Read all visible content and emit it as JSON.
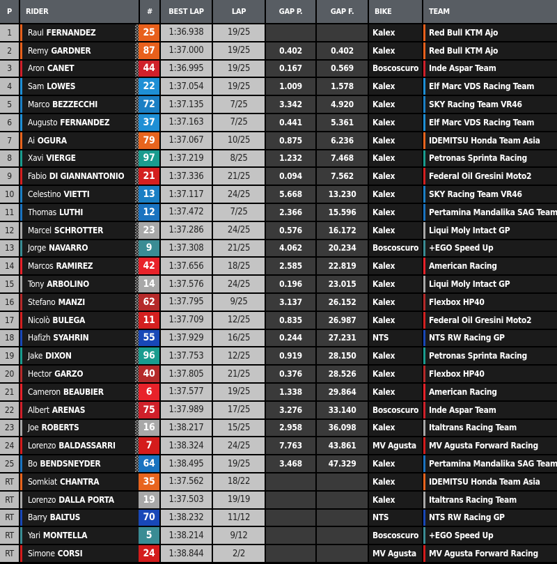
{
  "headers": [
    "P",
    "RIDER",
    "#",
    "BEST LAP",
    "LAP",
    "GAP P.",
    "GAP F.",
    "BIKE",
    "TEAM"
  ],
  "team_colors": {
    "Red Bull KTM Ajo": "#e8601c",
    "Inde Aspar Team": "#d0202a",
    "Elf Marc VDS Racing Team": "#1e8fd5",
    "SKY Racing Team VR46": "#1b7fc4",
    "IDEMITSU Honda Team Asia": "#e8641e",
    "Petronas Sprinta Racing": "#1a9c8f",
    "Federal Oil Gresini Moto2": "#d42020",
    "Pertamina Mandalika SAG Team": "#1a73c0",
    "Liqui Moly Intact GP": "#a8a8a8",
    "+EGO Speed Up": "#3a8c94",
    "American Racing": "#e8222a",
    "Flexbox HP40": "#b52a2a",
    "NTS RW Racing GP": "#1848b8",
    "Italtrans Racing Team": "#a8a8a8",
    "MV Agusta Forward Racing": "#d41c1c"
  },
  "rows": [
    {
      "pos": "1",
      "first": "Raul",
      "last": "FERNANDEZ",
      "num": "25",
      "best": "1:36.938",
      "lap": "19/25",
      "gap_p": "",
      "gap_f": "",
      "bike": "Kalex",
      "team": "Red Bull KTM Ajo",
      "finished": true
    },
    {
      "pos": "2",
      "first": "Remy",
      "last": "GARDNER",
      "num": "87",
      "best": "1:37.000",
      "lap": "19/25",
      "gap_p": "0.402",
      "gap_f": "0.402",
      "bike": "Kalex",
      "team": "Red Bull KTM Ajo",
      "finished": true
    },
    {
      "pos": "3",
      "first": "Aron",
      "last": "CANET",
      "num": "44",
      "best": "1:36.995",
      "lap": "19/25",
      "gap_p": "0.167",
      "gap_f": "0.569",
      "bike": "Boscoscuro",
      "team": "Inde Aspar Team",
      "finished": true
    },
    {
      "pos": "4",
      "first": "Sam",
      "last": "LOWES",
      "num": "22",
      "best": "1:37.054",
      "lap": "19/25",
      "gap_p": "1.009",
      "gap_f": "1.578",
      "bike": "Kalex",
      "team": "Elf Marc VDS Racing Team",
      "finished": true
    },
    {
      "pos": "5",
      "first": "Marco",
      "last": "BEZZECCHI",
      "num": "72",
      "best": "1:37.135",
      "lap": "7/25",
      "gap_p": "3.342",
      "gap_f": "4.920",
      "bike": "Kalex",
      "team": "SKY Racing Team VR46",
      "finished": true
    },
    {
      "pos": "6",
      "first": "Augusto",
      "last": "FERNANDEZ",
      "num": "37",
      "best": "1:37.163",
      "lap": "7/25",
      "gap_p": "0.441",
      "gap_f": "5.361",
      "bike": "Kalex",
      "team": "Elf Marc VDS Racing Team",
      "finished": true
    },
    {
      "pos": "7",
      "first": "Ai",
      "last": "OGURA",
      "num": "79",
      "best": "1:37.067",
      "lap": "10/25",
      "gap_p": "0.875",
      "gap_f": "6.236",
      "bike": "Kalex",
      "team": "IDEMITSU Honda Team Asia",
      "finished": true
    },
    {
      "pos": "8",
      "first": "Xavi",
      "last": "VIERGE",
      "num": "97",
      "best": "1:37.219",
      "lap": "8/25",
      "gap_p": "1.232",
      "gap_f": "7.468",
      "bike": "Kalex",
      "team": "Petronas Sprinta Racing",
      "finished": true
    },
    {
      "pos": "9",
      "first": "Fabio",
      "last": "DI GIANNANTONIO",
      "num": "21",
      "best": "1:37.336",
      "lap": "21/25",
      "gap_p": "0.094",
      "gap_f": "7.562",
      "bike": "Kalex",
      "team": "Federal Oil Gresini Moto2",
      "finished": true
    },
    {
      "pos": "10",
      "first": "Celestino",
      "last": "VIETTI",
      "num": "13",
      "best": "1:37.117",
      "lap": "24/25",
      "gap_p": "5.668",
      "gap_f": "13.230",
      "bike": "Kalex",
      "team": "SKY Racing Team VR46",
      "finished": true
    },
    {
      "pos": "11",
      "first": "Thomas",
      "last": "LUTHI",
      "num": "12",
      "best": "1:37.472",
      "lap": "7/25",
      "gap_p": "2.366",
      "gap_f": "15.596",
      "bike": "Kalex",
      "team": "Pertamina Mandalika SAG Team",
      "finished": true
    },
    {
      "pos": "12",
      "first": "Marcel",
      "last": "SCHROTTER",
      "num": "23",
      "best": "1:37.286",
      "lap": "24/25",
      "gap_p": "0.576",
      "gap_f": "16.172",
      "bike": "Kalex",
      "team": "Liqui Moly Intact GP",
      "finished": true
    },
    {
      "pos": "13",
      "first": "Jorge",
      "last": "NAVARRO",
      "num": "9",
      "best": "1:37.308",
      "lap": "21/25",
      "gap_p": "4.062",
      "gap_f": "20.234",
      "bike": "Boscoscuro",
      "team": "+EGO Speed Up",
      "finished": true
    },
    {
      "pos": "14",
      "first": "Marcos",
      "last": "RAMIREZ",
      "num": "42",
      "best": "1:37.656",
      "lap": "18/25",
      "gap_p": "2.585",
      "gap_f": "22.819",
      "bike": "Kalex",
      "team": "American Racing",
      "finished": true
    },
    {
      "pos": "15",
      "first": "Tony",
      "last": "ARBOLINO",
      "num": "14",
      "best": "1:37.576",
      "lap": "24/25",
      "gap_p": "0.196",
      "gap_f": "23.015",
      "bike": "Kalex",
      "team": "Liqui Moly Intact GP",
      "finished": true
    },
    {
      "pos": "16",
      "first": "Stefano",
      "last": "MANZI",
      "num": "62",
      "best": "1:37.795",
      "lap": "9/25",
      "gap_p": "3.137",
      "gap_f": "26.152",
      "bike": "Kalex",
      "team": "Flexbox HP40",
      "finished": true
    },
    {
      "pos": "17",
      "first": "Nicolò",
      "last": "BULEGA",
      "num": "11",
      "best": "1:37.709",
      "lap": "12/25",
      "gap_p": "0.835",
      "gap_f": "26.987",
      "bike": "Kalex",
      "team": "Federal Oil Gresini Moto2",
      "finished": true
    },
    {
      "pos": "18",
      "first": "Hafizh",
      "last": "SYAHRIN",
      "num": "55",
      "best": "1:37.929",
      "lap": "16/25",
      "gap_p": "0.244",
      "gap_f": "27.231",
      "bike": "NTS",
      "team": "NTS RW Racing GP",
      "finished": true
    },
    {
      "pos": "19",
      "first": "Jake",
      "last": "DIXON",
      "num": "96",
      "best": "1:37.753",
      "lap": "12/25",
      "gap_p": "0.919",
      "gap_f": "28.150",
      "bike": "Kalex",
      "team": "Petronas Sprinta Racing",
      "finished": true
    },
    {
      "pos": "20",
      "first": "Hector",
      "last": "GARZO",
      "num": "40",
      "best": "1:37.805",
      "lap": "21/25",
      "gap_p": "0.376",
      "gap_f": "28.526",
      "bike": "Kalex",
      "team": "Flexbox HP40",
      "finished": true
    },
    {
      "pos": "21",
      "first": "Cameron",
      "last": "BEAUBIER",
      "num": "6",
      "best": "1:37.577",
      "lap": "19/25",
      "gap_p": "1.338",
      "gap_f": "29.864",
      "bike": "Kalex",
      "team": "American Racing",
      "finished": true
    },
    {
      "pos": "22",
      "first": "Albert",
      "last": "ARENAS",
      "num": "75",
      "best": "1:37.989",
      "lap": "17/25",
      "gap_p": "3.276",
      "gap_f": "33.140",
      "bike": "Boscoscuro",
      "team": "Inde Aspar Team",
      "finished": true
    },
    {
      "pos": "23",
      "first": "Joe",
      "last": "ROBERTS",
      "num": "16",
      "best": "1:38.217",
      "lap": "15/25",
      "gap_p": "2.958",
      "gap_f": "36.098",
      "bike": "Kalex",
      "team": "Italtrans Racing Team",
      "finished": true
    },
    {
      "pos": "24",
      "first": "Lorenzo",
      "last": "BALDASSARRI",
      "num": "7",
      "best": "1:38.324",
      "lap": "24/25",
      "gap_p": "7.763",
      "gap_f": "43.861",
      "bike": "MV Agusta",
      "team": "MV Agusta Forward Racing",
      "finished": true
    },
    {
      "pos": "25",
      "first": "Bo",
      "last": "BENDSNEYDER",
      "num": "64",
      "best": "1:38.495",
      "lap": "19/25",
      "gap_p": "3.468",
      "gap_f": "47.329",
      "bike": "Kalex",
      "team": "Pertamina Mandalika SAG Team",
      "finished": true
    },
    {
      "pos": "RT",
      "first": "Somkiat",
      "last": "CHANTRA",
      "num": "35",
      "best": "1:37.562",
      "lap": "18/22",
      "gap_p": "",
      "gap_f": "",
      "bike": "Kalex",
      "team": "IDEMITSU Honda Team Asia",
      "finished": false
    },
    {
      "pos": "RT",
      "first": "Lorenzo",
      "last": "DALLA PORTA",
      "num": "19",
      "best": "1:37.503",
      "lap": "19/19",
      "gap_p": "",
      "gap_f": "",
      "bike": "Kalex",
      "team": "Italtrans Racing Team",
      "finished": false
    },
    {
      "pos": "RT",
      "first": "Barry",
      "last": "BALTUS",
      "num": "70",
      "best": "1:38.232",
      "lap": "11/12",
      "gap_p": "",
      "gap_f": "",
      "bike": "NTS",
      "team": "NTS RW Racing GP",
      "finished": false
    },
    {
      "pos": "RT",
      "first": "Yari",
      "last": "MONTELLA",
      "num": "5",
      "best": "1:38.214",
      "lap": "9/12",
      "gap_p": "",
      "gap_f": "",
      "bike": "Boscoscuro",
      "team": "+EGO Speed Up",
      "finished": false
    },
    {
      "pos": "RT",
      "first": "Simone",
      "last": "CORSI",
      "num": "24",
      "best": "1:38.844",
      "lap": "2/2",
      "gap_p": "",
      "gap_f": "",
      "bike": "MV Agusta",
      "team": "MV Agusta Forward Racing",
      "finished": false
    }
  ]
}
